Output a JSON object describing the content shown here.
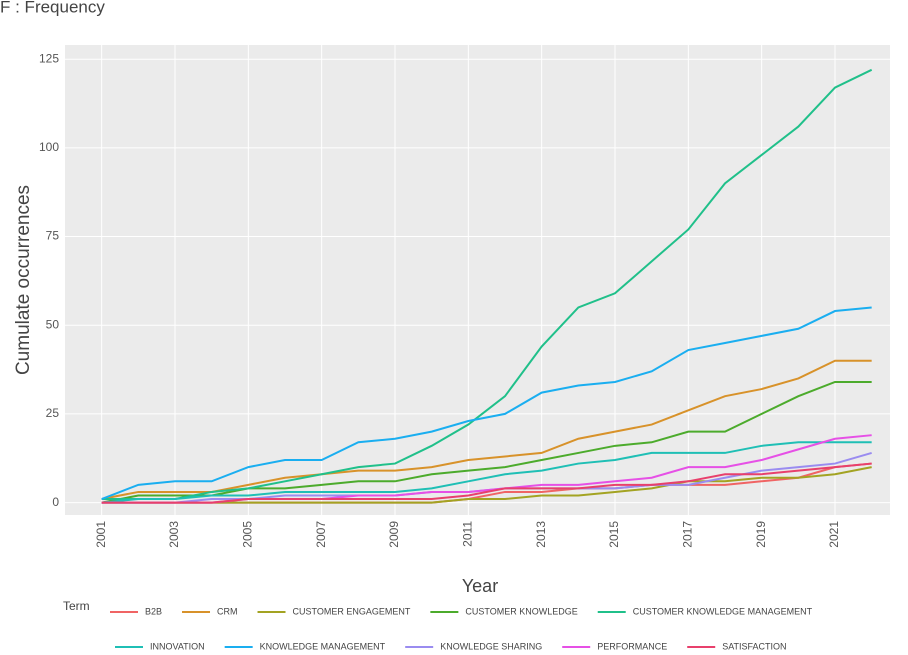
{
  "chart_data": {
    "type": "line",
    "title": "F : Frequency",
    "x_label": "Year",
    "y_label": "Cumulate occurrences",
    "legend_title": "Term",
    "x": [
      2001,
      2002,
      2003,
      2004,
      2005,
      2006,
      2007,
      2008,
      2009,
      2010,
      2011,
      2012,
      2013,
      2014,
      2015,
      2016,
      2017,
      2018,
      2019,
      2020,
      2021,
      2022
    ],
    "xlim": [
      2000,
      2022.5
    ],
    "xticks": [
      2001,
      2003,
      2005,
      2007,
      2009,
      2011,
      2013,
      2015,
      2017,
      2019,
      2021
    ],
    "ylim": [
      -3.5,
      129
    ],
    "yticks": [
      0,
      25,
      50,
      75,
      100,
      125
    ],
    "grid": true,
    "series": [
      {
        "name": "B2B",
        "color": "#f06464",
        "values": [
          0,
          0,
          0,
          0,
          0,
          0,
          0,
          0,
          0,
          0,
          1,
          3,
          3,
          4,
          4,
          5,
          5,
          5,
          6,
          7,
          10,
          11
        ]
      },
      {
        "name": "CRM",
        "color": "#d8922a",
        "values": [
          1,
          3,
          3,
          3,
          5,
          7,
          8,
          9,
          9,
          10,
          12,
          13,
          14,
          18,
          20,
          22,
          26,
          30,
          32,
          35,
          40,
          40
        ]
      },
      {
        "name": "CUSTOMER ENGAGEMENT",
        "color": "#a3a322",
        "values": [
          0,
          0,
          0,
          0,
          0,
          0,
          0,
          0,
          0,
          0,
          1,
          1,
          2,
          2,
          3,
          4,
          6,
          6,
          7,
          7,
          8,
          10
        ]
      },
      {
        "name": "CUSTOMER KNOWLEDGE",
        "color": "#4cab2c",
        "values": [
          0,
          2,
          2,
          2,
          4,
          4,
          5,
          6,
          6,
          8,
          9,
          10,
          12,
          14,
          16,
          17,
          20,
          20,
          25,
          30,
          34,
          34
        ]
      },
      {
        "name": "CUSTOMER KNOWLEDGE MANAGEMENT",
        "color": "#20c08a",
        "values": [
          1,
          1,
          1,
          3,
          4,
          6,
          8,
          10,
          11,
          16,
          22,
          30,
          44,
          55,
          59,
          68,
          77,
          90,
          98,
          106,
          117,
          122
        ]
      },
      {
        "name": "INNOVATION",
        "color": "#1fbfb5",
        "values": [
          0,
          1,
          1,
          2,
          2,
          3,
          3,
          3,
          3,
          4,
          6,
          8,
          9,
          11,
          12,
          14,
          14,
          14,
          16,
          17,
          17,
          17
        ]
      },
      {
        "name": "KNOWLEDGE MANAGEMENT",
        "color": "#1aaef0",
        "values": [
          1,
          5,
          6,
          6,
          10,
          12,
          12,
          17,
          18,
          20,
          23,
          25,
          31,
          33,
          34,
          37,
          43,
          45,
          47,
          49,
          54,
          55
        ]
      },
      {
        "name": "KNOWLEDGE SHARING",
        "color": "#9a8cf0",
        "values": [
          0,
          0,
          0,
          1,
          1,
          2,
          2,
          2,
          2,
          3,
          3,
          4,
          4,
          4,
          4,
          5,
          5,
          7,
          9,
          10,
          11,
          14
        ]
      },
      {
        "name": "PERFORMANCE",
        "color": "#e650e6",
        "values": [
          0,
          0,
          0,
          0,
          1,
          1,
          1,
          2,
          2,
          3,
          3,
          4,
          5,
          5,
          6,
          7,
          10,
          10,
          12,
          15,
          18,
          19
        ]
      },
      {
        "name": "SATISFACTION",
        "color": "#e8406c",
        "values": [
          0,
          0,
          0,
          0,
          1,
          1,
          1,
          1,
          1,
          1,
          2,
          4,
          4,
          4,
          5,
          5,
          6,
          8,
          8,
          9,
          10,
          11
        ]
      }
    ]
  }
}
